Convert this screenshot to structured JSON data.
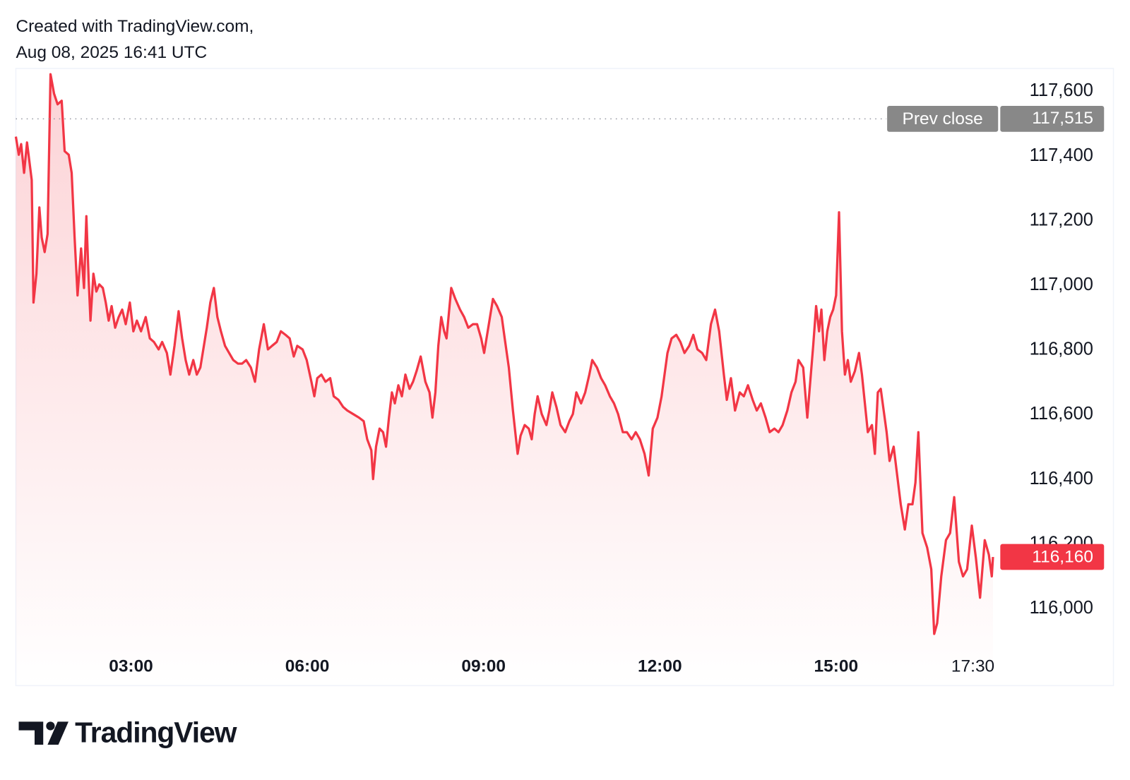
{
  "header": {
    "line1": "Created with TradingView.com,",
    "line2": "Aug 08, 2025 16:41 UTC"
  },
  "logo": {
    "text": "TradingView"
  },
  "chart_data": {
    "type": "area",
    "color": "#f23645",
    "xlim": [
      1.04,
      19.72
    ],
    "ylim": [
      115762,
      117671
    ],
    "xticks": [
      {
        "value": 3,
        "label": "03:00"
      },
      {
        "value": 6,
        "label": "06:00"
      },
      {
        "value": 9,
        "label": "09:00"
      },
      {
        "value": 12,
        "label": "12:00"
      },
      {
        "value": 15,
        "label": "15:00"
      },
      {
        "value": 17.5,
        "label": "17:30"
      }
    ],
    "yticks": [
      {
        "value": 116000,
        "label": "116,000"
      },
      {
        "value": 116200,
        "label": "116,200"
      },
      {
        "value": 116400,
        "label": "116,400"
      },
      {
        "value": 116600,
        "label": "116,600"
      },
      {
        "value": 116800,
        "label": "116,800"
      },
      {
        "value": 117000,
        "label": "117,000"
      },
      {
        "value": 117200,
        "label": "117,200"
      },
      {
        "value": 117400,
        "label": "117,400"
      },
      {
        "value": 117600,
        "label": "117,600"
      }
    ],
    "grid": false,
    "prev_close": {
      "label": "Prev close",
      "value": 117515,
      "value_label": "117,515"
    },
    "last_value_label": "116,160",
    "x": [
      1.04,
      1.09,
      1.13,
      1.18,
      1.23,
      1.31,
      1.34,
      1.39,
      1.44,
      1.48,
      1.53,
      1.58,
      1.63,
      1.69,
      1.75,
      1.82,
      1.87,
      1.94,
      1.99,
      2.04,
      2.09,
      2.15,
      2.2,
      2.24,
      2.28,
      2.31,
      2.36,
      2.41,
      2.46,
      2.52,
      2.57,
      2.62,
      2.67,
      2.73,
      2.79,
      2.85,
      2.91,
      2.98,
      3.04,
      3.1,
      3.17,
      3.25,
      3.32,
      3.39,
      3.47,
      3.53,
      3.61,
      3.67,
      3.74,
      3.81,
      3.87,
      3.93,
      3.99,
      4.06,
      4.12,
      4.18,
      4.24,
      4.29,
      4.35,
      4.41,
      4.47,
      4.53,
      4.6,
      4.67,
      4.74,
      4.82,
      4.89,
      4.96,
      5.04,
      5.11,
      5.18,
      5.26,
      5.33,
      5.4,
      5.48,
      5.55,
      5.63,
      5.7,
      5.77,
      5.83,
      5.92,
      5.99,
      6.07,
      6.12,
      6.17,
      6.24,
      6.31,
      6.39,
      6.45,
      6.53,
      6.61,
      6.68,
      6.78,
      6.88,
      6.96,
      7.02,
      7.09,
      7.12,
      7.17,
      7.23,
      7.29,
      7.34,
      7.39,
      7.44,
      7.49,
      7.55,
      7.61,
      7.67,
      7.74,
      7.8,
      7.86,
      7.93,
      8.01,
      8.08,
      8.13,
      8.18,
      8.23,
      8.28,
      8.33,
      8.37,
      8.45,
      8.52,
      8.6,
      8.67,
      8.74,
      8.82,
      8.89,
      8.96,
      9.01,
      9.09,
      9.16,
      9.23,
      9.31,
      9.36,
      9.43,
      9.5,
      9.58,
      9.63,
      9.7,
      9.77,
      9.82,
      9.87,
      9.92,
      9.99,
      10.07,
      10.12,
      10.17,
      10.24,
      10.31,
      10.39,
      10.46,
      10.52,
      10.58,
      10.66,
      10.73,
      10.8,
      10.85,
      10.93,
      11.0,
      11.07,
      11.15,
      11.22,
      11.29,
      11.37,
      11.44,
      11.52,
      11.59,
      11.66,
      11.74,
      11.81,
      11.88,
      11.96,
      12.03,
      12.08,
      12.13,
      12.2,
      12.28,
      12.35,
      12.42,
      12.5,
      12.57,
      12.64,
      12.72,
      12.79,
      12.87,
      12.94,
      13.01,
      13.09,
      13.14,
      13.21,
      13.28,
      13.36,
      13.43,
      13.5,
      13.58,
      13.65,
      13.72,
      13.8,
      13.87,
      13.95,
      14.02,
      14.09,
      14.17,
      14.24,
      14.31,
      14.36,
      14.44,
      14.51,
      14.56,
      14.61,
      14.66,
      14.71,
      14.75,
      14.8,
      14.85,
      14.9,
      14.95,
      15.0,
      15.05,
      15.1,
      15.15,
      15.2,
      15.25,
      15.32,
      15.39,
      15.44,
      15.49,
      15.54,
      15.61,
      15.66,
      15.71,
      15.76,
      15.81,
      15.86,
      15.91,
      15.98,
      16.04,
      16.1,
      16.17,
      16.23,
      16.3,
      16.35,
      16.4,
      16.47,
      16.55,
      16.62,
      16.67,
      16.72,
      16.79,
      16.87,
      16.94,
      17.01,
      17.09,
      17.16,
      17.23,
      17.31,
      17.38,
      17.45,
      17.53,
      17.6,
      17.65,
      17.67
    ],
    "values": [
      117460,
      117404,
      117437,
      117348,
      117442,
      117326,
      116947,
      117036,
      117241,
      117148,
      117103,
      117159,
      117653,
      117593,
      117560,
      117571,
      117415,
      117404,
      117348,
      117148,
      116969,
      117114,
      116992,
      117214,
      117014,
      116891,
      117036,
      116981,
      117003,
      116992,
      116947,
      116891,
      116936,
      116869,
      116902,
      116925,
      116880,
      116947,
      116858,
      116891,
      116858,
      116902,
      116836,
      116825,
      116802,
      116825,
      116791,
      116724,
      116813,
      116920,
      116836,
      116769,
      116724,
      116769,
      116724,
      116746,
      116813,
      116869,
      116947,
      116992,
      116902,
      116858,
      116813,
      116791,
      116769,
      116758,
      116758,
      116769,
      116746,
      116702,
      116802,
      116880,
      116802,
      116813,
      116825,
      116858,
      116847,
      116836,
      116780,
      116813,
      116802,
      116769,
      116702,
      116657,
      116713,
      116724,
      116702,
      116713,
      116657,
      116646,
      116624,
      116613,
      116602,
      116591,
      116580,
      116524,
      116490,
      116401,
      116501,
      116557,
      116546,
      116501,
      116591,
      116669,
      116635,
      116691,
      116657,
      116724,
      116680,
      116702,
      116735,
      116780,
      116702,
      116669,
      116591,
      116669,
      116813,
      116902,
      116858,
      116836,
      116992,
      116958,
      116925,
      116902,
      116869,
      116880,
      116880,
      116836,
      116791,
      116880,
      116958,
      116936,
      116902,
      116836,
      116746,
      116613,
      116479,
      116535,
      116568,
      116557,
      116524,
      116602,
      116657,
      116602,
      116568,
      116613,
      116669,
      116624,
      116568,
      116546,
      116580,
      116602,
      116669,
      116635,
      116669,
      116724,
      116769,
      116746,
      116713,
      116691,
      116657,
      116635,
      116602,
      116546,
      116546,
      116524,
      116546,
      116524,
      116479,
      116412,
      116557,
      116591,
      116657,
      116724,
      116791,
      116836,
      116847,
      116825,
      116791,
      116813,
      116847,
      116802,
      116791,
      116769,
      116880,
      116925,
      116858,
      116724,
      116646,
      116713,
      116613,
      116669,
      116657,
      116691,
      116646,
      116613,
      116635,
      116591,
      116546,
      116557,
      116546,
      116568,
      116613,
      116669,
      116702,
      116769,
      116746,
      116591,
      116702,
      116813,
      116936,
      116858,
      116925,
      116769,
      116858,
      116902,
      116925,
      116969,
      117226,
      116858,
      116724,
      116769,
      116702,
      116735,
      116791,
      116724,
      116635,
      116546,
      116568,
      116479,
      116669,
      116680,
      116613,
      116546,
      116457,
      116501,
      116412,
      116323,
      116245,
      116323,
      116323,
      116390,
      116546,
      116234,
      116189,
      116122,
      115922,
      115955,
      116100,
      116212,
      116234,
      116345,
      116145,
      116100,
      116122,
      116257,
      116156,
      116034,
      116212,
      116167,
      116100,
      116160
    ]
  }
}
